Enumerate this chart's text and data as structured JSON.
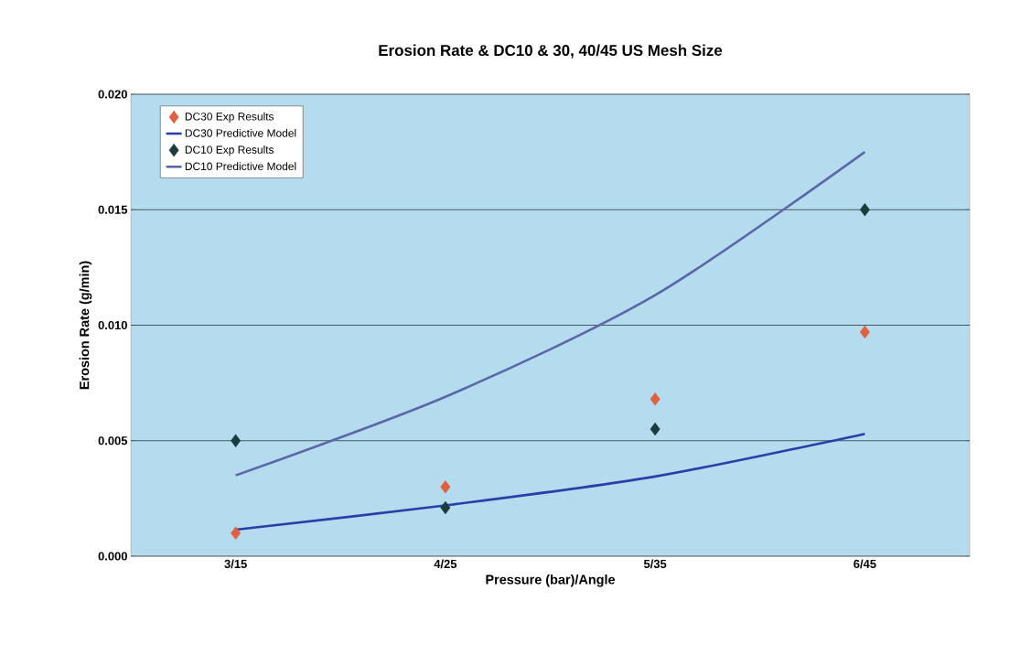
{
  "chart_data": {
    "type": "line",
    "title": "Erosion Rate & DC10 & 30, 40/45 US Mesh Size",
    "xlabel": "Pressure (bar)/Angle",
    "ylabel": "Erosion Rate (g/min)",
    "categories": [
      "3/15",
      "4/25",
      "5/35",
      "6/45"
    ],
    "series": [
      {
        "name": "DC30 Exp Results",
        "type": "scatter",
        "marker": "diamond",
        "color": "#e0603f",
        "values": [
          0.001,
          0.003,
          0.0068,
          0.0097
        ]
      },
      {
        "name": "DC30 Predictive Model",
        "marker": "none",
        "color": "#2a40a8",
        "values": [
          0.00115,
          0.0022,
          0.00345,
          0.0053
        ]
      },
      {
        "name": "DC10 Exp Results",
        "type": "scatter",
        "marker": "diamond",
        "color": "#1a3c3c",
        "values": [
          0.005,
          0.0021,
          0.0055,
          0.015
        ]
      },
      {
        "name": "DC10 Predictive Model",
        "marker": "none",
        "color": "#5a68a8",
        "values": [
          0.0035,
          0.0069,
          0.0113,
          0.0175
        ]
      }
    ],
    "ylim": [
      0,
      0.02
    ],
    "yticks": [
      {
        "value": 0,
        "label": "0.000"
      },
      {
        "value": 0.005,
        "label": "0.005"
      },
      {
        "value": 0.01,
        "label": "0.010"
      },
      {
        "value": 0.015,
        "label": "0.015"
      },
      {
        "value": 0.02,
        "label": "0.020"
      }
    ],
    "grid": "y",
    "legend": "top left"
  }
}
